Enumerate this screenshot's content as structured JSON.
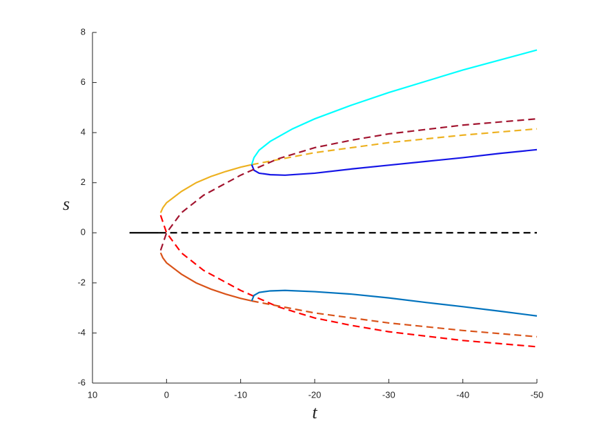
{
  "chart_data": {
    "type": "line",
    "x_label": "t",
    "y_label": "s",
    "xlim": [
      10,
      -50
    ],
    "xticks": [
      10,
      0,
      -10,
      -20,
      -30,
      -40,
      -50
    ],
    "ylim": [
      -6,
      8
    ],
    "yticks": [
      -6,
      -4,
      -2,
      0,
      2,
      4,
      6,
      8
    ],
    "series": [
      {
        "color": "#000000",
        "style": "solid",
        "x": [
          5,
          1
        ],
        "values": [
          0,
          0
        ]
      },
      {
        "color": "#000000",
        "style": "dashed",
        "x": [
          1,
          -50
        ],
        "values": [
          0,
          0
        ]
      },
      {
        "color": "#edb120",
        "style": "solid",
        "x": [
          0.8,
          0.5,
          0,
          -2,
          -4,
          -6,
          -8,
          -10,
          -11.5
        ],
        "values": [
          0.8,
          1.0,
          1.2,
          1.65,
          2.0,
          2.25,
          2.45,
          2.62,
          2.72
        ]
      },
      {
        "color": "#edb120",
        "style": "dashed",
        "x": [
          -11.5,
          -20,
          -30,
          -40,
          -50
        ],
        "values": [
          2.72,
          3.2,
          3.6,
          3.9,
          4.15
        ]
      },
      {
        "color": "#00ffff",
        "style": "solid",
        "x": [
          -11.5,
          -11.8,
          -12.5,
          -14,
          -17,
          -20,
          -25,
          -30,
          -35,
          -40,
          -45,
          -50
        ],
        "values": [
          2.72,
          3.0,
          3.3,
          3.65,
          4.15,
          4.55,
          5.1,
          5.6,
          6.05,
          6.5,
          6.9,
          7.3
        ]
      },
      {
        "color": "#1414e6",
        "style": "solid",
        "x": [
          -11.5,
          -11.8,
          -12.5,
          -14,
          -16,
          -20,
          -25,
          -30,
          -35,
          -40,
          -45,
          -50
        ],
        "values": [
          2.72,
          2.5,
          2.38,
          2.32,
          2.3,
          2.38,
          2.55,
          2.7,
          2.85,
          3.0,
          3.17,
          3.32
        ]
      },
      {
        "color": "#a2142f",
        "style": "dashed",
        "x": [
          0.8,
          0,
          -2,
          -5,
          -10,
          -15,
          -20,
          -25,
          -30,
          -40,
          -50
        ],
        "values": [
          -0.7,
          0,
          0.8,
          1.5,
          2.3,
          2.95,
          3.4,
          3.7,
          3.95,
          4.3,
          4.55
        ]
      },
      {
        "color": "#ff0000",
        "style": "dashed",
        "x": [
          0.8,
          0,
          -2,
          -5,
          -10,
          -15,
          -20,
          -25,
          -30,
          -40,
          -50
        ],
        "values": [
          0.7,
          0,
          -0.8,
          -1.5,
          -2.3,
          -2.95,
          -3.4,
          -3.7,
          -3.95,
          -4.3,
          -4.55
        ]
      },
      {
        "color": "#d95319",
        "style": "solid",
        "x": [
          0.8,
          0.5,
          0,
          -2,
          -4,
          -6,
          -8,
          -10,
          -11.5
        ],
        "values": [
          -0.8,
          -1.0,
          -1.2,
          -1.65,
          -2.0,
          -2.25,
          -2.45,
          -2.62,
          -2.72
        ]
      },
      {
        "color": "#d95319",
        "style": "dashed",
        "x": [
          -11.5,
          -20,
          -30,
          -40,
          -50
        ],
        "values": [
          -2.72,
          -3.2,
          -3.6,
          -3.9,
          -4.15
        ]
      },
      {
        "color": "#0072bd",
        "style": "solid",
        "x": [
          -11.5,
          -11.8,
          -12.5,
          -14,
          -16,
          -20,
          -25,
          -30,
          -35,
          -40,
          -45,
          -50
        ],
        "values": [
          -2.72,
          -2.5,
          -2.38,
          -2.32,
          -2.3,
          -2.35,
          -2.45,
          -2.6,
          -2.78,
          -2.95,
          -3.13,
          -3.32
        ]
      }
    ]
  }
}
